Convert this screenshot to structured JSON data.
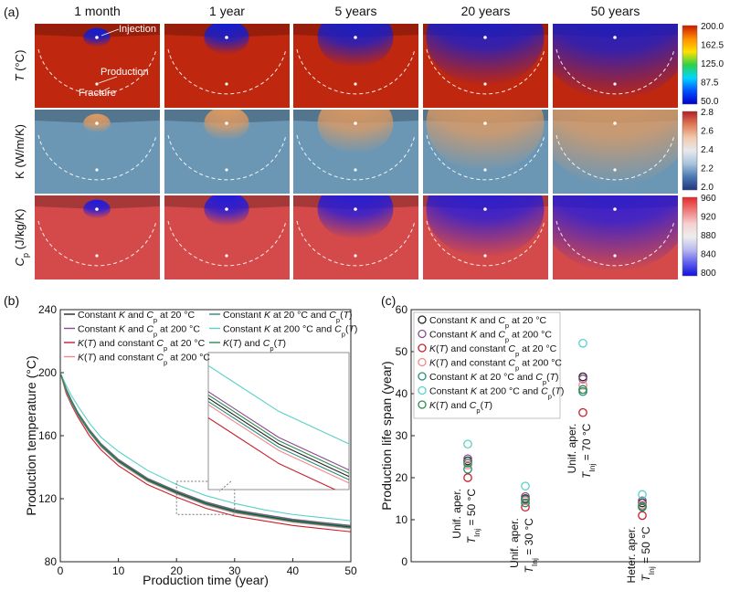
{
  "panel_labels": {
    "a": "(a)",
    "b": "(b)",
    "c": "(c)"
  },
  "heatmaps": {
    "time_titles": [
      "1 month",
      "1 year",
      "5 years",
      "20 years",
      "50 years"
    ],
    "time_index": [
      0.04,
      0.18,
      0.42,
      0.75,
      1.0
    ],
    "row_labels": [
      {
        "main": "T",
        "rest": " (°C)"
      },
      {
        "main": "K (W/m/K)",
        "rest": ""
      },
      {
        "main": "C",
        "sub": "p",
        "rest": " (J/kg/K)"
      }
    ],
    "annotations": {
      "injection": "Injection",
      "production": "Production",
      "fracture": "Fracture"
    },
    "colorbars": [
      {
        "ticks": [
          "200.0",
          "162.5",
          "125.0",
          "87.5",
          "50.0"
        ],
        "colors": [
          "#cc1a00",
          "#ff8c00",
          "#ffe100",
          "#2fd04a",
          "#00d6ff",
          "#0050ff",
          "#0000c8"
        ],
        "background": "#c0270f",
        "cool": "rgb(10,30,220)"
      },
      {
        "ticks": [
          "2.8",
          "2.6",
          "2.4",
          "2.2",
          "2.0"
        ],
        "colors": [
          "#b2202b",
          "#e07a56",
          "#f2c9ad",
          "#e8e8ee",
          "#a8c4dc",
          "#4a78b4",
          "#21377c"
        ],
        "background": "#6b97b5",
        "cool": "rgb(228,155,95)"
      },
      {
        "ticks": [
          "960",
          "920",
          "880",
          "840",
          "800"
        ],
        "colors": [
          "#e22a2a",
          "#f07a7a",
          "#f6cfcf",
          "#eeeeee",
          "#b9b9f0",
          "#6060ee",
          "#1010dd"
        ],
        "background": "#d44a4a",
        "cool": "rgb(25,25,230)"
      }
    ]
  },
  "chart_b": {
    "type": "line",
    "xlabel": "Production time (year)",
    "ylabel": "Production temperature (°C)",
    "xlim": [
      0,
      50
    ],
    "ylim": [
      80,
      240
    ],
    "xticks": [
      "0",
      "10",
      "20",
      "30",
      "40",
      "50"
    ],
    "yticks": [
      "80",
      "120",
      "160",
      "200",
      "240"
    ],
    "x": [
      0,
      1,
      2,
      3,
      5,
      7,
      10,
      15,
      20,
      25,
      30,
      35,
      40,
      45,
      50
    ],
    "legend": [
      [
        "Constant ",
        "K",
        " and ",
        "C",
        "p",
        " at 20 °C"
      ],
      [
        "Constant ",
        "K",
        " and ",
        "C",
        "p",
        " at 200 °C"
      ],
      [
        "",
        "K",
        "(",
        "T",
        ") and constant ",
        "C",
        "p",
        " at 20 °C"
      ],
      [
        "",
        "K",
        "(",
        "T",
        ") and constant ",
        "C",
        "p",
        " at 200 °C"
      ],
      [
        "Constant ",
        "K",
        " at 20 °C and ",
        "C",
        "p",
        "(",
        "T",
        ")"
      ],
      [
        "Constant ",
        "K",
        " at 200 °C and ",
        "C",
        "p",
        "(",
        "T",
        ")"
      ],
      [
        "",
        "K",
        "(",
        "T",
        ") and ",
        "C",
        "p",
        "(",
        "T",
        ")"
      ]
    ],
    "series": [
      {
        "color": "#222222",
        "values": [
          200,
          189,
          181,
          174,
          163,
          154,
          144,
          132,
          124,
          117,
          112,
          109,
          106,
          104,
          102
        ]
      },
      {
        "color": "#8a4a93",
        "values": [
          200,
          190,
          182,
          175,
          164,
          155,
          145,
          133,
          125,
          118,
          113,
          110,
          107,
          105,
          103
        ]
      },
      {
        "color": "#c8202a",
        "values": [
          200,
          187,
          179,
          172,
          160,
          151,
          141,
          129,
          121,
          114,
          109,
          106,
          103,
          101,
          99
        ]
      },
      {
        "color": "#ee8a8a",
        "values": [
          200,
          188,
          180,
          173,
          162,
          153,
          143,
          131,
          123,
          116,
          111,
          108,
          105,
          103,
          101
        ]
      },
      {
        "color": "#2a8a7a",
        "values": [
          200,
          188.5,
          180.5,
          173.5,
          162.5,
          153.5,
          143.5,
          131.5,
          123.5,
          116.5,
          111.5,
          108.5,
          105.5,
          103.5,
          101.5
        ]
      },
      {
        "color": "#5ad0c8",
        "values": [
          200,
          192,
          185,
          179,
          168,
          159,
          150,
          138,
          129,
          122,
          117,
          113,
          110,
          108,
          106
        ]
      },
      {
        "color": "#2e8a4e",
        "values": [
          200,
          189.5,
          181.5,
          174.5,
          163.5,
          154.5,
          144.5,
          132.5,
          124.5,
          117.5,
          112.5,
          109.5,
          106.5,
          104.5,
          102.5
        ]
      }
    ],
    "inset_zoom": {
      "x": [
        20,
        30
      ],
      "y": [
        110,
        131
      ]
    }
  },
  "chart_c": {
    "type": "scatter",
    "ylabel": "Production life span (year)",
    "ylim": [
      0,
      60
    ],
    "yticks": [
      "0",
      "10",
      "20",
      "30",
      "40",
      "50",
      "60"
    ],
    "categories": [
      [
        "Unif. aper.",
        "T",
        "Inj",
        " = 50 °C"
      ],
      [
        "Unif. aper.",
        "T",
        "Inj",
        " = 30 °C"
      ],
      [
        "Unif. aper.",
        "T",
        "Inj",
        " = 70 °C"
      ],
      [
        "Heter. aper.",
        "T",
        "Inj",
        " = 50 °C"
      ]
    ],
    "series": [
      {
        "color": "#222222",
        "values": [
          24,
          15,
          44,
          14
        ]
      },
      {
        "color": "#8a4a93",
        "values": [
          24.5,
          15.5,
          43.5,
          14.5
        ]
      },
      {
        "color": "#c8202a",
        "values": [
          20,
          13,
          35.5,
          11
        ]
      },
      {
        "color": "#ee8a8a",
        "values": [
          23,
          14.5,
          42,
          13.5
        ]
      },
      {
        "color": "#2a8a7a",
        "values": [
          22,
          14,
          40.5,
          13
        ]
      },
      {
        "color": "#5ad0c8",
        "values": [
          28,
          18,
          52,
          16
        ]
      },
      {
        "color": "#2e8a4e",
        "values": [
          23.5,
          14.8,
          41,
          13.2
        ]
      }
    ]
  }
}
